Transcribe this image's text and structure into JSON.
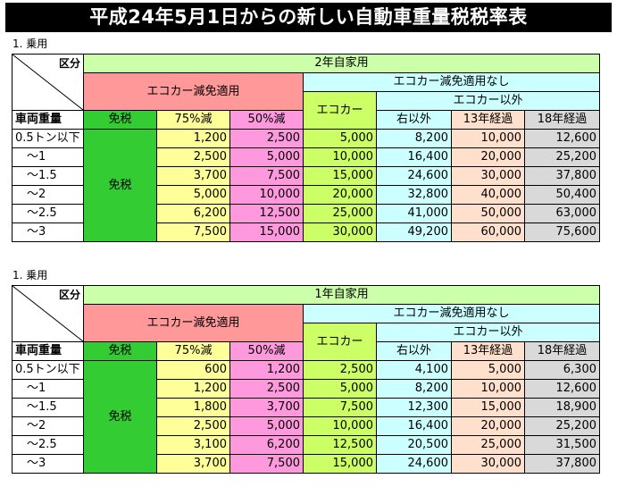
{
  "title": "平成24年5月1日からの新しい自動車重量税税率表",
  "sections": [
    {
      "label": "1. 乗用",
      "corner_top": "区分",
      "corner_bottom": "車両重量",
      "header": "2年自家用",
      "eco_reduced": "エコカー減免適用",
      "eco_none": "エコカー減免適用なし",
      "ecocar": "エコカー",
      "non_ecocar": "エコカー以外",
      "exempt_col": "免税",
      "c75": "75%減",
      "c50": "50%減",
      "other": "右以外",
      "y13": "13年経過",
      "y18": "18年経過",
      "exempt_cell": "免税",
      "rows": [
        {
          "weight": "0.5トン以下",
          "v75": "1,200",
          "v50": "2,500",
          "eco": "5,000",
          "oth": "8,200",
          "y13": "10,000",
          "y18": "12,600"
        },
        {
          "weight": "～1",
          "v75": "2,500",
          "v50": "5,000",
          "eco": "10,000",
          "oth": "16,400",
          "y13": "20,000",
          "y18": "25,200"
        },
        {
          "weight": "～1.5",
          "v75": "3,700",
          "v50": "7,500",
          "eco": "15,000",
          "oth": "24,600",
          "y13": "30,000",
          "y18": "37,800"
        },
        {
          "weight": "～2",
          "v75": "5,000",
          "v50": "10,000",
          "eco": "20,000",
          "oth": "32,800",
          "y13": "40,000",
          "y18": "50,400"
        },
        {
          "weight": "～2.5",
          "v75": "6,200",
          "v50": "12,500",
          "eco": "25,000",
          "oth": "41,000",
          "y13": "50,000",
          "y18": "63,000"
        },
        {
          "weight": "～3",
          "v75": "7,500",
          "v50": "15,000",
          "eco": "30,000",
          "oth": "49,200",
          "y13": "60,000",
          "y18": "75,600"
        }
      ]
    },
    {
      "label": "1. 乗用",
      "corner_top": "区分",
      "corner_bottom": "車両重量",
      "header": "1年自家用",
      "eco_reduced": "エコカー減免適用",
      "eco_none": "エコカー減免適用なし",
      "ecocar": "エコカー",
      "non_ecocar": "エコカー以外",
      "exempt_col": "免税",
      "c75": "75%減",
      "c50": "50%減",
      "other": "右以外",
      "y13": "13年経過",
      "y18": "18年経過",
      "exempt_cell": "免税",
      "rows": [
        {
          "weight": "0.5トン以下",
          "v75": "600",
          "v50": "1,200",
          "eco": "2,500",
          "oth": "4,100",
          "y13": "5,000",
          "y18": "6,300"
        },
        {
          "weight": "～1",
          "v75": "1,200",
          "v50": "2,500",
          "eco": "5,000",
          "oth": "8,200",
          "y13": "10,000",
          "y18": "12,600"
        },
        {
          "weight": "～1.5",
          "v75": "1,800",
          "v50": "3,700",
          "eco": "7,500",
          "oth": "12,300",
          "y13": "15,000",
          "y18": "18,900"
        },
        {
          "weight": "～2",
          "v75": "2,500",
          "v50": "5,000",
          "eco": "10,000",
          "oth": "16,400",
          "y13": "20,000",
          "y18": "25,200"
        },
        {
          "weight": "～2.5",
          "v75": "3,100",
          "v50": "6,200",
          "eco": "12,500",
          "oth": "20,500",
          "y13": "25,000",
          "y18": "31,500"
        },
        {
          "weight": "～3",
          "v75": "3,700",
          "v50": "7,500",
          "eco": "15,000",
          "oth": "24,600",
          "y13": "30,000",
          "y18": "37,800"
        }
      ]
    }
  ]
}
